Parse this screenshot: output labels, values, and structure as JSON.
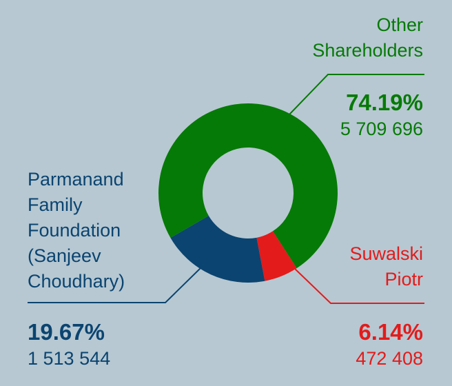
{
  "chart_data": {
    "type": "pie",
    "variant": "donut",
    "slices": [
      {
        "name": "Other Shareholders",
        "name_lines": [
          "Other",
          "Shareholders"
        ],
        "percent_label": "74.19%",
        "value": 5709696,
        "value_label": "5 709 696",
        "percent": 74.19,
        "color": "#067a06"
      },
      {
        "name": "Parmanand Family Foundation (Sanjeev Choudhary)",
        "name_lines": [
          "Parmanand",
          "Family",
          "Foundation",
          "(Sanjeev",
          "Choudhary)"
        ],
        "percent_label": "19.67%",
        "value": 1513544,
        "value_label": "1 513 544",
        "percent": 19.67,
        "color": "#0b4470"
      },
      {
        "name": "Suwalski Piotr",
        "name_lines": [
          "Suwalski",
          "Piotr"
        ],
        "percent_label": "6.14%",
        "value": 472408,
        "value_label": "472 408",
        "percent": 6.14,
        "color": "#e31b1b"
      }
    ]
  }
}
